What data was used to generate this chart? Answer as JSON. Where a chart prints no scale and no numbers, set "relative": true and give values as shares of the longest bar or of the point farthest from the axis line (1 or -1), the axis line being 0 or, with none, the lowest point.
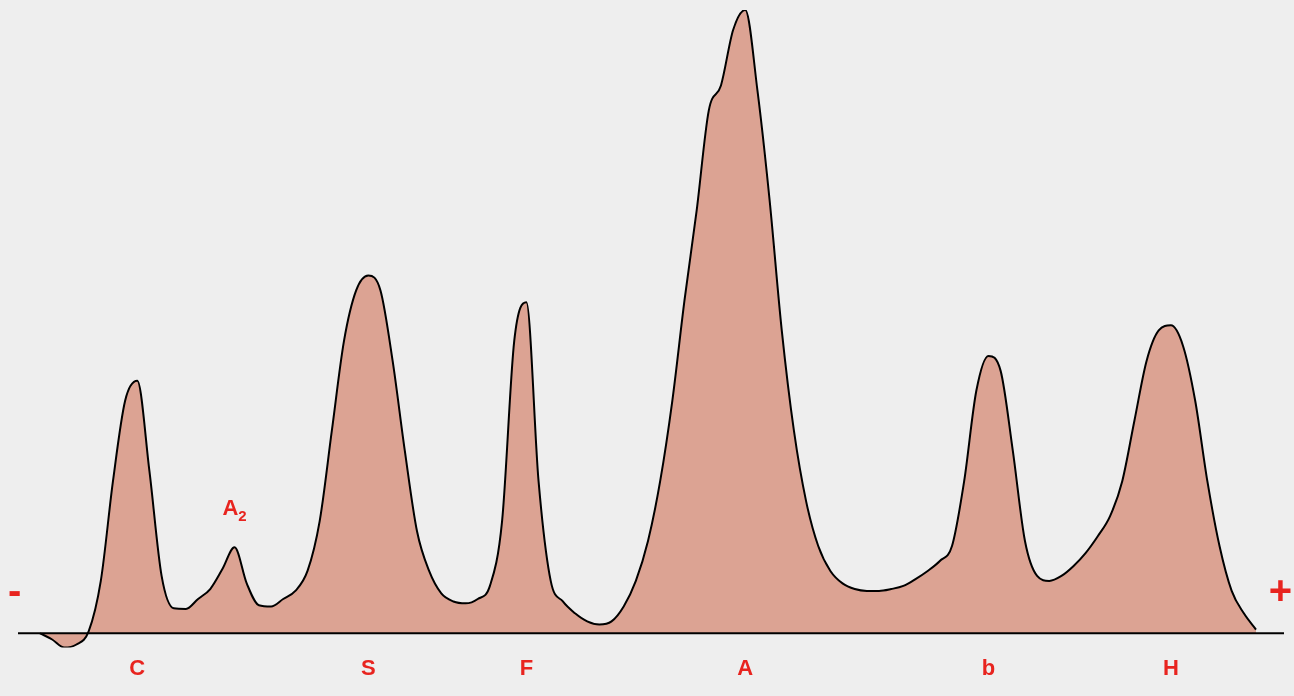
{
  "chart_data": {
    "type": "area",
    "relative": true,
    "tick_labels": "x",
    "categories": [
      null,
      null,
      null,
      null,
      null,
      null,
      null,
      null,
      "C",
      null,
      null,
      null,
      null,
      null,
      null,
      null,
      null,
      null,
      null,
      null,
      null,
      null,
      null,
      null,
      null,
      null,
      null,
      "S",
      null,
      null,
      null,
      null,
      null,
      null,
      null,
      null,
      null,
      null,
      null,
      null,
      "F",
      null,
      null,
      null,
      null,
      null,
      null,
      null,
      null,
      null,
      null,
      null,
      null,
      null,
      null,
      null,
      null,
      null,
      "A",
      null,
      null,
      null,
      null,
      null,
      null,
      null,
      null,
      null,
      null,
      null,
      null,
      null,
      null,
      null,
      null,
      null,
      null,
      null,
      "b",
      null,
      null,
      null,
      null,
      null,
      null,
      null,
      null,
      null,
      null,
      null,
      null,
      null,
      null,
      "H",
      null,
      null,
      null,
      null,
      null,
      null,
      null
    ],
    "series": [
      {
        "color": "#dca393",
        "values": [
          0,
          -0.01,
          -0.023,
          -0.018,
          0.003,
          0.084,
          0.244,
          0.373,
          0.405,
          0.26,
          0.092,
          0.04,
          0.039,
          0.055,
          0.071,
          0.103,
          0.138,
          0.08,
          0.045,
          0.043,
          0.055,
          0.068,
          0.1,
          0.18,
          0.325,
          0.469,
          0.55,
          0.574,
          0.55,
          0.437,
          0.293,
          0.164,
          0.1,
          0.064,
          0.051,
          0.048,
          0.055,
          0.076,
          0.18,
          0.469,
          0.531,
          0.244,
          0.084,
          0.051,
          0.032,
          0.019,
          0.014,
          0.019,
          0.043,
          0.084,
          0.148,
          0.244,
          0.373,
          0.534,
          0.678,
          0.839,
          0.879,
          0.968,
          1,
          0.871,
          0.695,
          0.486,
          0.325,
          0.212,
          0.14,
          0.1,
          0.08,
          0.071,
          0.068,
          0.068,
          0.071,
          0.076,
          0.087,
          0.1,
          0.116,
          0.14,
          0.244,
          0.389,
          0.445,
          0.421,
          0.293,
          0.148,
          0.092,
          0.084,
          0.092,
          0.108,
          0.129,
          0.156,
          0.188,
          0.244,
          0.341,
          0.437,
          0.486,
          0.494,
          0.461,
          0.373,
          0.244,
          0.14,
          0.068,
          0.032,
          0.006
        ]
      }
    ],
    "annotations": [
      "-",
      "+",
      {
        "text": "A$_{2}$",
        "y": 0.138
      }
    ]
  }
}
